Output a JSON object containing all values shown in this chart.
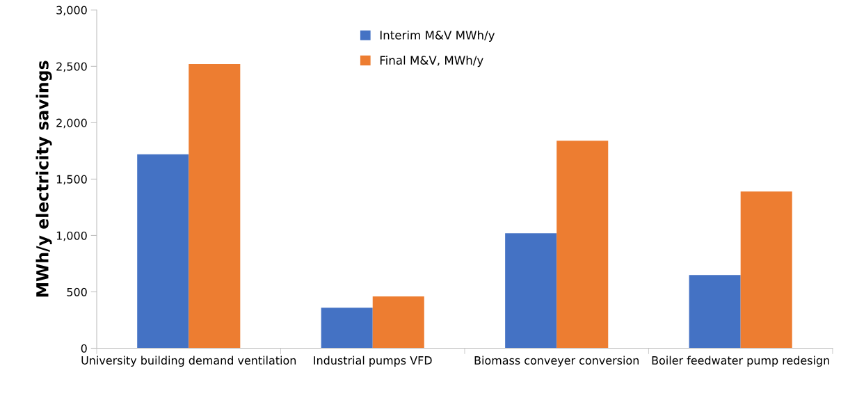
{
  "chart_data": {
    "type": "bar",
    "ylabel": "MWh/y electricity savings",
    "categories": [
      "University building demand ventilation",
      "Industrial pumps VFD",
      "Biomass conveyer conversion",
      "Boiler feedwater pump redesign"
    ],
    "series": [
      {
        "name": "Interim M&V MWh/y",
        "color": "#4472c4",
        "values": [
          1720,
          360,
          1020,
          650
        ]
      },
      {
        "name": "Final M&V, MWh/y",
        "color": "#ed7d31",
        "values": [
          2520,
          460,
          1840,
          1390
        ]
      }
    ],
    "ylim": [
      0,
      3000
    ],
    "yticks": [
      0,
      500,
      {
        "value": 1000,
        "label": "1,000"
      },
      {
        "value": 1500,
        "label": "1,500"
      },
      {
        "value": 2000,
        "label": "2,000"
      },
      {
        "value": 2500,
        "label": "2,500"
      },
      {
        "value": 3000,
        "label": "3,000"
      }
    ],
    "grid": false,
    "legend": "top"
  }
}
